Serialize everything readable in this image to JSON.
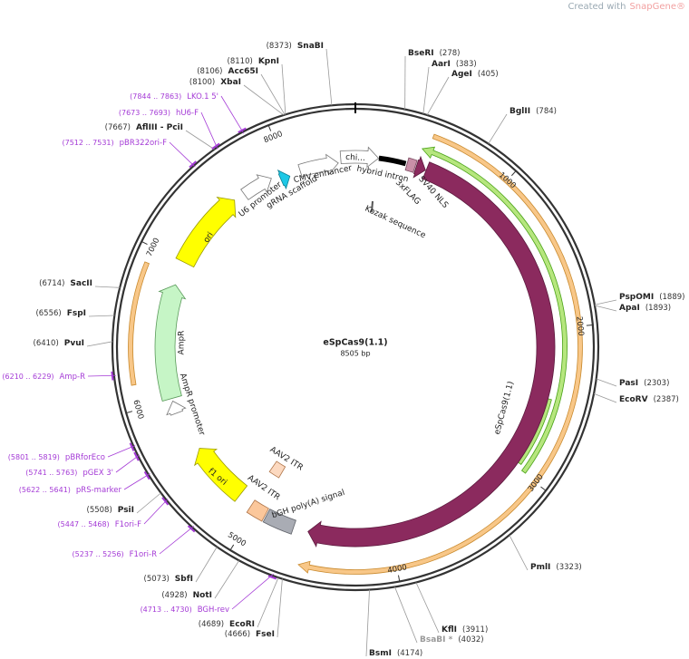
{
  "watermark": {
    "text": "Created with",
    "brand": "SnapGene®"
  },
  "plasmid": {
    "name": "eSpCas9(1.1)",
    "size": "8505 bp",
    "ticks": [
      1000,
      2000,
      3000,
      4000,
      5000,
      6000,
      7000,
      8000
    ]
  },
  "sites": [
    {
      "name": "BseRI",
      "position": "(278)"
    },
    {
      "name": "AarI",
      "position": "(383)"
    },
    {
      "name": "AgeI",
      "position": "(405)"
    },
    {
      "name": "BglII",
      "position": "(784)"
    },
    {
      "name": "PspOMI",
      "position": "(1889)"
    },
    {
      "name": "ApaI",
      "position": "(1893)"
    },
    {
      "name": "PasI",
      "position": "(2303)"
    },
    {
      "name": "EcoRV",
      "position": "(2387)"
    },
    {
      "name": "PmlI",
      "position": "(3323)"
    },
    {
      "name": "KflI",
      "position": "(3911)"
    },
    {
      "name": "BsaBI *",
      "position": "(4032)"
    },
    {
      "name": "BsmI",
      "position": "(4174)"
    },
    {
      "name": "FseI",
      "position": "(4666)"
    },
    {
      "name": "EcoRI",
      "position": "(4689)"
    },
    {
      "name": "NotI",
      "position": "(4928)"
    },
    {
      "name": "SbfI",
      "position": "(5073)"
    },
    {
      "name": "PsiI",
      "position": "(5508)"
    },
    {
      "name": "PvuI",
      "position": "(6410)"
    },
    {
      "name": "FspI",
      "position": "(6556)"
    },
    {
      "name": "SacII",
      "position": "(6714)"
    },
    {
      "name": "AflIII - PciI",
      "position": "(7667)"
    },
    {
      "name": "XbaI",
      "position": "(8100)"
    },
    {
      "name": "Acc65I",
      "position": "(8106)"
    },
    {
      "name": "KpnI",
      "position": "(8110)"
    },
    {
      "name": "SnaBI",
      "position": "(8373)"
    }
  ],
  "primers": [
    {
      "name": "LKO.1 5'",
      "position": "(7844 .. 7863)"
    },
    {
      "name": "hU6-F",
      "position": "(7673 .. 7693)"
    },
    {
      "name": "pBR322ori-F",
      "position": "(7512 .. 7531)"
    },
    {
      "name": "Amp-R",
      "position": "(6210 .. 6229)"
    },
    {
      "name": "pBRforEco",
      "position": "(5801 .. 5819)"
    },
    {
      "name": "pGEX 3'",
      "position": "(5741 .. 5763)"
    },
    {
      "name": "pRS-marker",
      "position": "(5622 .. 5641)"
    },
    {
      "name": "F1ori-F",
      "position": "(5447 .. 5468)"
    },
    {
      "name": "F1ori-R",
      "position": "(5237 .. 5256)"
    },
    {
      "name": "BGH-rev",
      "position": "(4713 .. 4730)"
    }
  ],
  "features": [
    {
      "label": "eSpCas9(1.1)"
    },
    {
      "label": "SV40 NLS"
    },
    {
      "label": "3xFLAG"
    },
    {
      "label": "hybrid intron"
    },
    {
      "label": "Kozak sequence"
    },
    {
      "label": "chi..."
    },
    {
      "label": "CMV enhancer"
    },
    {
      "label": "gRNA scaffold"
    },
    {
      "label": "U6 promoter"
    },
    {
      "label": "ori"
    },
    {
      "label": "AmpR"
    },
    {
      "label": "AmpR promoter"
    },
    {
      "label": "f1 ori"
    },
    {
      "label": "AAV2 ITR"
    },
    {
      "label": "AAV2 ITR"
    },
    {
      "label": "bGH poly(A) signal"
    }
  ]
}
